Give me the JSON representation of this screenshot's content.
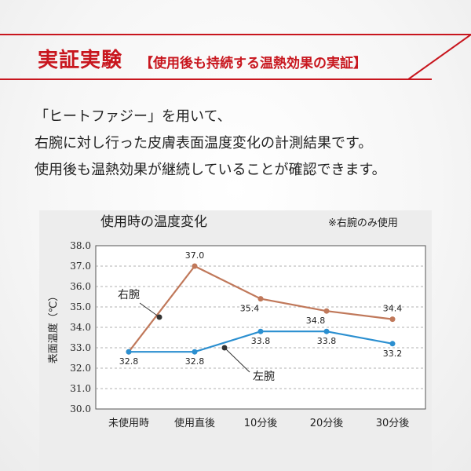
{
  "header": {
    "title": "実証実験",
    "subtitle": "【使用後も持続する温熱効果の実証】",
    "accent_color": "#c8161e"
  },
  "intro": {
    "line1": "「ヒートファジー」を用いて、",
    "line2": "右腕に対し行った皮膚表面温度変化の計測結果です。",
    "line3": "使用後も温熱効果が継続していることが確認できます。"
  },
  "chart_data": {
    "type": "line",
    "title": "使用時の温度変化",
    "note": "※右腕のみ使用",
    "ylabel": "表面温度（℃）",
    "xlabel": "",
    "categories": [
      "未使用時",
      "使用直後",
      "10分後",
      "20分後",
      "30分後"
    ],
    "ylim": [
      30.0,
      38.0
    ],
    "yticks": [
      "30.0",
      "31.0",
      "32.0",
      "33.0",
      "34.0",
      "35.0",
      "36.0",
      "37.0",
      "38.0"
    ],
    "grid": true,
    "series": [
      {
        "name": "右腕",
        "values": [
          32.8,
          37.0,
          35.4,
          34.8,
          34.4
        ],
        "color": "#c0785a"
      },
      {
        "name": "左腕",
        "values": [
          32.8,
          32.8,
          33.8,
          33.8,
          33.2
        ],
        "color": "#2b8fd0"
      }
    ]
  }
}
